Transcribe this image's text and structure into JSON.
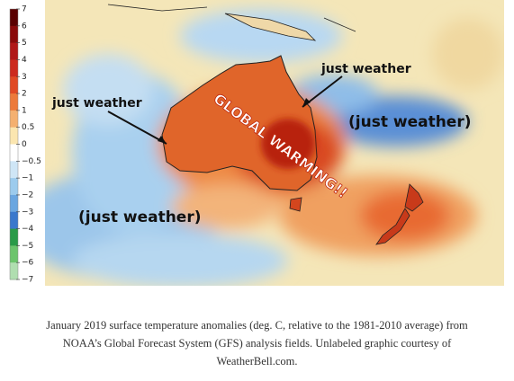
{
  "colorbar": {
    "labels": [
      "7",
      "6",
      "5",
      "4",
      "3",
      "2",
      "1",
      "0.5",
      "0",
      "−0.5",
      "−1",
      "−2",
      "−3",
      "−4",
      "−5",
      "−6",
      "−7"
    ]
  },
  "annotations": {
    "west_label": "just weather",
    "east_label": "just weather",
    "east_paren": "(just weather)",
    "southwest_paren": "(just weather)",
    "center": "GLOBAL WARMING!!"
  },
  "caption": {
    "lines": [
      "January 2019 surface temperature anomalies (deg. C, relative to the 1981-2010 average) from",
      "NOAA’s Global Forecast System (GFS) analysis fields. Unlabeled graphic courtesy of",
      "WeatherBell.com."
    ]
  }
}
